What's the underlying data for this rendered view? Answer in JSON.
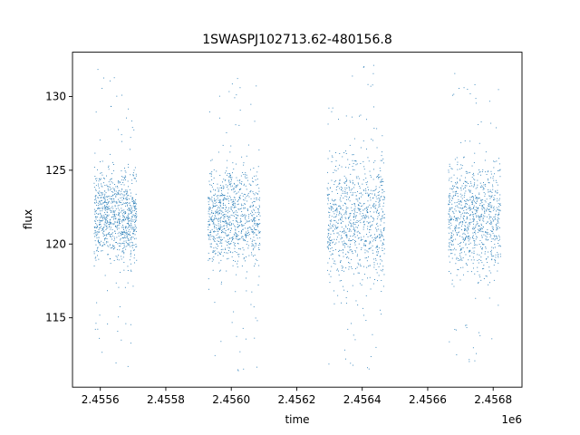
{
  "chart_data": {
    "type": "scatter",
    "title": "1SWASPJ102713.62-480156.8",
    "xlabel": "time",
    "ylabel": "flux",
    "x_offset_label": "1e6",
    "xlim": [
      2455515,
      2456888
    ],
    "ylim": [
      110.3,
      133.0
    ],
    "x_ticks": [
      2455600,
      2455800,
      2456000,
      2456200,
      2456400,
      2456600,
      2456800
    ],
    "x_tick_labels": [
      "2.4556",
      "2.4558",
      "2.4560",
      "2.4562",
      "2.4564",
      "2.4566",
      "2.4568"
    ],
    "y_ticks": [
      115,
      120,
      125,
      130
    ],
    "y_tick_labels": [
      "115",
      "120",
      "125",
      "130"
    ],
    "grid": false,
    "legend": "none",
    "marker_color": "#1f77b4",
    "series": [
      {
        "description_of_clusters": "observing seasons of point-like flux measurements",
        "clusters": [
          {
            "x_range": [
              2455580,
              2455710
            ],
            "y_core": [
              119.0,
              124.8
            ],
            "y_full": [
              111.5,
              131.9
            ]
          },
          {
            "x_range": [
              2455928,
              2456087
            ],
            "y_core": [
              118.6,
              125.2
            ],
            "y_full": [
              111.2,
              131.5
            ]
          },
          {
            "x_range": [
              2456292,
              2456467
            ],
            "y_core": [
              117.5,
              126.0
            ],
            "y_full": [
              111.3,
              132.2
            ]
          },
          {
            "x_range": [
              2456662,
              2456822
            ],
            "y_core": [
              118.3,
              125.5
            ],
            "y_full": [
              111.5,
              131.9
            ]
          }
        ]
      }
    ]
  }
}
